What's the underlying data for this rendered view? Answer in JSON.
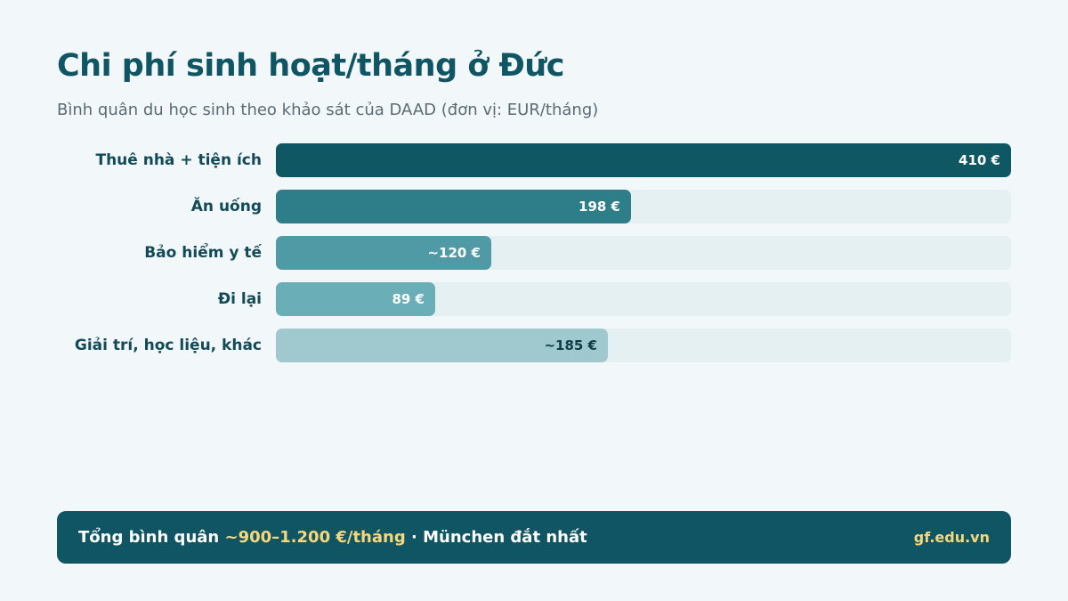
{
  "header": {
    "title": "Chi phí sinh hoạt/tháng ở Đức",
    "subtitle": "Bình quân du học sinh theo khảo sát của DAAD (đơn vị: EUR/tháng)"
  },
  "chart_data": {
    "type": "bar",
    "orientation": "horizontal",
    "title": "Chi phí sinh hoạt/tháng ở Đức",
    "subtitle": "Bình quân du học sinh theo khảo sát của DAAD (đơn vị: EUR/tháng)",
    "categories": [
      "Thuê nhà + tiện ích",
      "Ăn uống",
      "Bảo hiểm y tế",
      "Đi lại",
      "Giải trí, học liệu, khác"
    ],
    "values": [
      410,
      198,
      120,
      89,
      185
    ],
    "value_labels": [
      "410 €",
      "198 €",
      "~120 €",
      "89 €",
      "~185 €"
    ],
    "xlim": [
      0,
      410
    ],
    "grid": false,
    "colors": [
      "#0f5763",
      "#2d7e88",
      "#4f9aa4",
      "#6aafb8",
      "#9fc9cf"
    ],
    "label_colors": [
      "#ffffff",
      "#ffffff",
      "#ffffff",
      "#ffffff",
      "#0f3d47"
    ]
  },
  "footer": {
    "prefix": "Tổng bình quân ",
    "highlight": "~900–1.200 €/tháng",
    "suffix": " · München đắt nhất",
    "site": "gf.edu.vn"
  }
}
